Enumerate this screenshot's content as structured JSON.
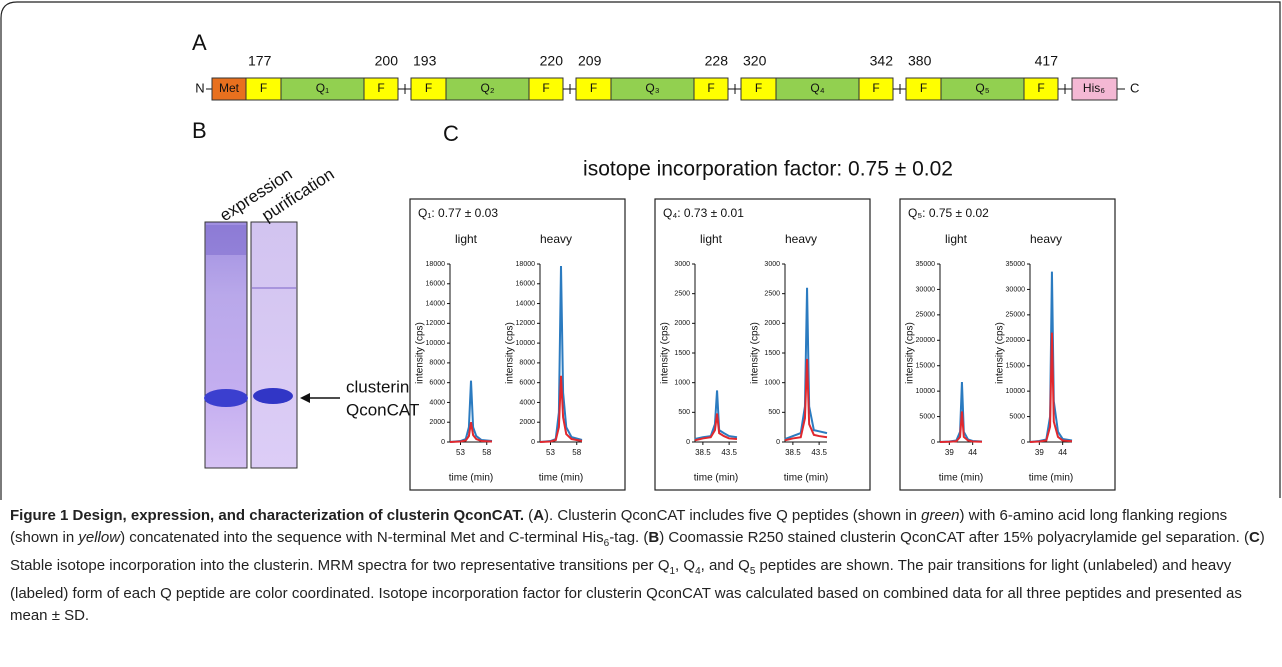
{
  "figure": {
    "panel_a": {
      "label": "A",
      "n_term": "N",
      "c_term": "C",
      "met": "Met",
      "flank": "F",
      "his": "His₆",
      "peptides": [
        {
          "name": "Q₁",
          "start": "177",
          "end": "200"
        },
        {
          "name": "Q₂",
          "start": "193",
          "end": "220"
        },
        {
          "name": "Q₃",
          "start": "209",
          "end": "228"
        },
        {
          "name": "Q₄",
          "start": "320",
          "end": "342"
        },
        {
          "name": "Q₅",
          "start": "380",
          "end": "417"
        }
      ]
    },
    "panel_b": {
      "label": "B",
      "lanes": [
        "expression",
        "purification"
      ],
      "band_label": [
        "clusterin",
        "QconCAT"
      ]
    },
    "panel_c": {
      "label": "C",
      "title": "isotope incorporation factor: 0.75 ± 0.02",
      "groups": [
        "Q₁: 0.77 ± 0.03",
        "Q₄: 0.73 ± 0.01",
        "Q₅: 0.75 ± 0.02"
      ]
    },
    "caption": [
      "Figure 1 Design, expression, and characterization of clusterin QconCAT.",
      " (",
      "A",
      "). Clusterin QconCAT includes five Q peptides (shown in ",
      "green",
      ") with 6-amino acid long flanking regions (shown in ",
      "yellow",
      ") concatenated into the sequence with N-terminal Met and C-terminal His",
      "6",
      "-tag. (",
      "B",
      ") Coomassie R250 stained clusterin QconCAT after 15% polyacrylamide gel separation. (",
      "C",
      ") Stable isotope incorporation into the clusterin. MRM spectra for two representative transitions per Q",
      "1",
      ", Q",
      "4",
      ", and Q",
      "5",
      " peptides are shown. The pair transitions for light (unlabeled) and heavy (labeled) form of each Q peptide are color coordinated. Isotope incorporation factor for clusterin QconCAT was calculated based on combined data for all three peptides and presented as mean ± SD."
    ]
  },
  "chart_data": [
    {
      "type": "line",
      "title": "light",
      "ylabel": "intensity (cps)",
      "xlabel": "time (min)",
      "xlim": [
        51,
        59
      ],
      "xticks": [
        53,
        58
      ],
      "ylim": [
        0,
        18000
      ],
      "yticks": [
        0,
        2000,
        4000,
        6000,
        8000,
        10000,
        12000,
        14000,
        16000,
        18000
      ],
      "x": [
        51,
        53,
        54,
        54.6,
        55,
        55.4,
        56,
        57,
        59
      ],
      "series": [
        {
          "color": "#2b7bc0",
          "values": [
            0,
            100,
            300,
            1500,
            6200,
            1500,
            600,
            200,
            100
          ]
        },
        {
          "color": "#e0282e",
          "values": [
            0,
            50,
            150,
            600,
            2000,
            700,
            300,
            100,
            50
          ]
        }
      ]
    },
    {
      "type": "line",
      "title": "heavy",
      "ylabel": "intensity (cps)",
      "xlabel": "time (min)",
      "xlim": [
        51,
        59
      ],
      "xticks": [
        53,
        58
      ],
      "ylim": [
        0,
        18000
      ],
      "yticks": [
        0,
        2000,
        4000,
        6000,
        8000,
        10000,
        12000,
        14000,
        16000,
        18000
      ],
      "x": [
        51,
        53,
        54,
        54.6,
        55,
        55.4,
        56,
        57,
        59
      ],
      "series": [
        {
          "color": "#2b7bc0",
          "values": [
            0,
            100,
            300,
            3000,
            17800,
            5000,
            1500,
            500,
            200
          ]
        },
        {
          "color": "#e0282e",
          "values": [
            0,
            50,
            200,
            1500,
            6700,
            2500,
            800,
            300,
            100
          ]
        }
      ]
    },
    {
      "type": "line",
      "title": "light",
      "ylabel": "intensity (cps)",
      "xlabel": "time (min)",
      "xlim": [
        37,
        45
      ],
      "xticks": [
        38.5,
        43.5
      ],
      "ylim": [
        0,
        3000
      ],
      "yticks": [
        0,
        500,
        1000,
        1500,
        2000,
        2500,
        3000
      ],
      "x": [
        37,
        38.5,
        40,
        40.8,
        41.2,
        41.6,
        42.5,
        43.5,
        45
      ],
      "series": [
        {
          "color": "#2b7bc0",
          "values": [
            50,
            80,
            100,
            300,
            870,
            200,
            150,
            100,
            80
          ]
        },
        {
          "color": "#e0282e",
          "values": [
            30,
            60,
            80,
            200,
            480,
            150,
            100,
            60,
            50
          ]
        }
      ]
    },
    {
      "type": "line",
      "title": "heavy",
      "ylabel": "intensity (cps)",
      "xlabel": "time (min)",
      "xlim": [
        37,
        45
      ],
      "xticks": [
        38.5,
        43.5
      ],
      "ylim": [
        0,
        3000
      ],
      "yticks": [
        0,
        500,
        1000,
        1500,
        2000,
        2500,
        3000
      ],
      "x": [
        37,
        38.5,
        40,
        40.8,
        41.2,
        41.6,
        42.5,
        43.5,
        45
      ],
      "series": [
        {
          "color": "#2b7bc0",
          "values": [
            50,
            100,
            150,
            600,
            2600,
            600,
            200,
            180,
            150
          ]
        },
        {
          "color": "#e0282e",
          "values": [
            30,
            60,
            80,
            400,
            1400,
            300,
            120,
            100,
            80
          ]
        }
      ]
    },
    {
      "type": "line",
      "title": "light",
      "ylabel": "intensity (cps)",
      "xlabel": "time (min)",
      "xlim": [
        37,
        46
      ],
      "xticks": [
        39,
        44
      ],
      "ylim": [
        0,
        35000
      ],
      "yticks": [
        0,
        5000,
        10000,
        15000,
        20000,
        25000,
        30000,
        35000
      ],
      "x": [
        37,
        39,
        40.5,
        41.3,
        41.7,
        42.1,
        43,
        44,
        46
      ],
      "series": [
        {
          "color": "#2b7bc0",
          "values": [
            0,
            100,
            300,
            2000,
            11800,
            2000,
            500,
            200,
            100
          ]
        },
        {
          "color": "#e0282e",
          "values": [
            0,
            50,
            150,
            1000,
            6000,
            1000,
            300,
            100,
            50
          ]
        }
      ]
    },
    {
      "type": "line",
      "title": "heavy",
      "ylabel": "intensity (cps)",
      "xlabel": "time (min)",
      "xlim": [
        37,
        46
      ],
      "xticks": [
        39,
        44
      ],
      "ylim": [
        0,
        35000
      ],
      "yticks": [
        0,
        5000,
        10000,
        15000,
        20000,
        25000,
        30000,
        35000
      ],
      "x": [
        37,
        39,
        40.5,
        41.3,
        41.7,
        42.1,
        43,
        44,
        46
      ],
      "series": [
        {
          "color": "#2b7bc0",
          "values": [
            0,
            200,
            500,
            5000,
            33500,
            8000,
            2000,
            600,
            300
          ]
        },
        {
          "color": "#e0282e",
          "values": [
            0,
            100,
            300,
            3000,
            21500,
            4000,
            1000,
            300,
            150
          ]
        }
      ]
    }
  ]
}
